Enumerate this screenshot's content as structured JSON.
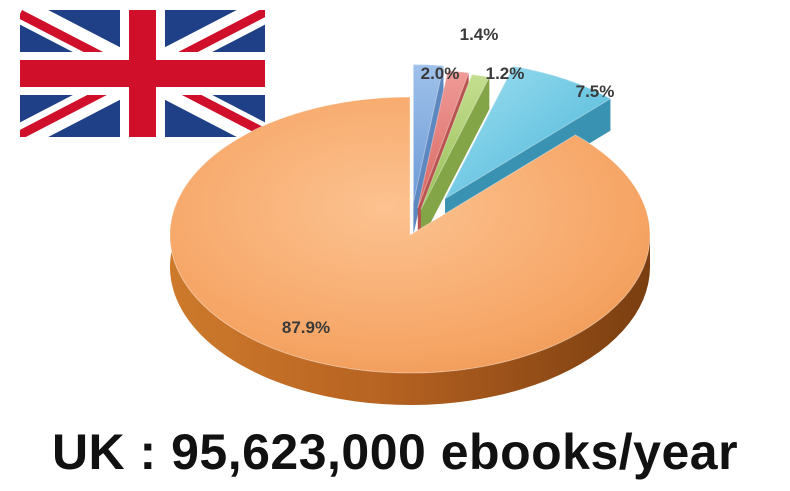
{
  "caption": "UK : 95,623,000 ebooks/year",
  "flag": {
    "icon": "union-jack-flag-icon",
    "colors": {
      "blue": "#1f3f86",
      "red": "#d0102a",
      "white": "#ffffff"
    }
  },
  "chart_data": {
    "type": "pie",
    "style": "3d-exploded",
    "title": "",
    "slices": [
      {
        "value": 2.0,
        "label": "2.0%",
        "color": "#7aa7dd"
      },
      {
        "value": 1.4,
        "label": "1.4%",
        "color": "#e07672"
      },
      {
        "value": 1.2,
        "label": "1.2%",
        "color": "#a9cb6a"
      },
      {
        "value": 7.5,
        "label": "7.5%",
        "color": "#5fc3e0"
      },
      {
        "value": 87.9,
        "label": "87.9%",
        "color": "#f6a565"
      }
    ],
    "legend": "none"
  }
}
